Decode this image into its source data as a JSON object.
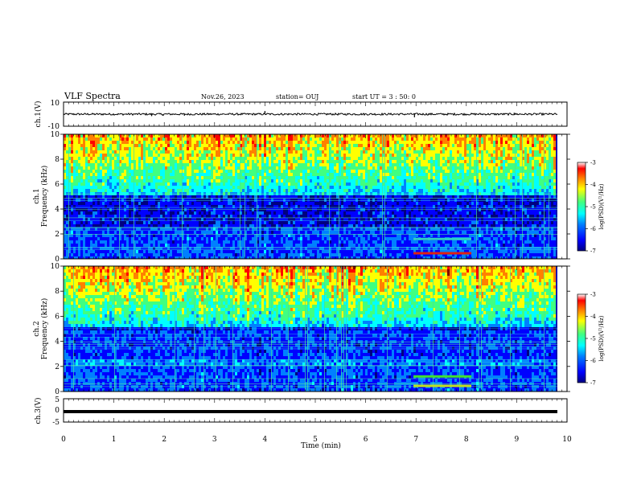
{
  "header": {
    "title": "VLF Spectra",
    "date": "Nov.26, 2023",
    "station": "station= OUJ",
    "start": "start UT = 3 : 50: 0"
  },
  "chart_data": [
    {
      "type": "line",
      "name": "ch1-waveform",
      "ylabel": "ch.1(V)",
      "ylim": [
        -10,
        10
      ],
      "ytick_labels": [
        "10",
        "-10"
      ],
      "xlim": [
        0,
        10
      ],
      "baseline": 0,
      "spikes": [
        {
          "x": 1.75,
          "y": -1.6
        },
        {
          "x": 1.98,
          "y": -1.4
        },
        {
          "x": 2.4,
          "y": -1.3
        },
        {
          "x": 4.0,
          "y": 2.6
        },
        {
          "x": 6.97,
          "y": -2.6
        },
        {
          "x": 8.95,
          "y": 1.2
        }
      ]
    },
    {
      "type": "heatmap",
      "name": "ch1-spectrogram",
      "ylabel": "ch.1\nFrequency (kHz)",
      "xlim": [
        0,
        10
      ],
      "ylim": [
        0,
        10
      ],
      "yticks": [
        0,
        2,
        4,
        6,
        8,
        10
      ],
      "colorbar": {
        "label": "log(PSD)(V²/Hz)",
        "range": [
          -7,
          -3
        ],
        "ticks": [
          -3,
          -4,
          -5,
          -6,
          -7
        ]
      },
      "features": [
        {
          "kind": "band",
          "t_start": 6.95,
          "t_end": 8.1,
          "f": 0.45,
          "color": "#e02010"
        },
        {
          "kind": "band",
          "t_start": 6.95,
          "t_end": 8.1,
          "f": 1.6,
          "color": "#30d0c0"
        }
      ]
    },
    {
      "type": "heatmap",
      "name": "ch2-spectrogram",
      "ylabel": "ch.2\nFrequency (kHz)",
      "xlim": [
        0,
        10
      ],
      "ylim": [
        0,
        10
      ],
      "yticks": [
        0,
        2,
        4,
        6,
        8,
        10
      ],
      "colorbar": {
        "label": "log(PSD)(V²/Hz)",
        "range": [
          -7,
          -3
        ],
        "ticks": [
          -3,
          -4,
          -5,
          -6,
          -7
        ]
      },
      "features": [
        {
          "kind": "band",
          "t_start": 6.95,
          "t_end": 8.1,
          "f": 1.2,
          "color": "#40e030"
        },
        {
          "kind": "band",
          "t_start": 6.95,
          "t_end": 8.1,
          "f": 0.45,
          "color": "#c0e020"
        }
      ]
    },
    {
      "type": "line",
      "name": "ch3-waveform",
      "ylabel": "ch.3(V)",
      "ylim": [
        -5,
        5
      ],
      "ytick_labels": [
        "5",
        "0",
        "-5"
      ],
      "xlim": [
        0,
        10
      ],
      "baseline": -1.2
    }
  ],
  "axes": {
    "xlabel": "Time (min)",
    "xticks": [
      0,
      1,
      2,
      3,
      4,
      5,
      6,
      7,
      8,
      9,
      10
    ]
  },
  "colors": {
    "colormap": [
      "#000080",
      "#0000ff",
      "#0080ff",
      "#00ffff",
      "#40ff80",
      "#ffff00",
      "#ff8000",
      "#ff0000",
      "#800000"
    ],
    "waveform": "#000000"
  }
}
